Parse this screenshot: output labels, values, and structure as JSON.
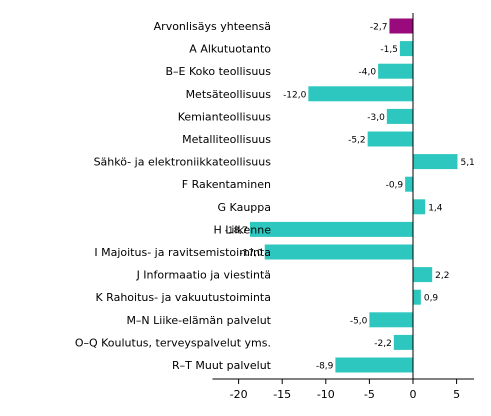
{
  "chart_data": {
    "type": "bar",
    "orientation": "horizontal",
    "title": "",
    "xlabel": "",
    "ylabel": "",
    "xlim": [
      -23,
      7
    ],
    "x_ticks": [
      -20,
      -15,
      -10,
      -5,
      0,
      5
    ],
    "x_tick_labels": [
      "-20",
      "-15",
      "-10",
      "-5",
      "0",
      "5"
    ],
    "grid": false,
    "legend": "none",
    "categories": [
      "Arvonlisäys yhteensä",
      "A Alkutuotanto",
      "B–E Koko teollisuus",
      "Metsäteollisuus",
      "Kemianteollisuus",
      "Metalliteollisuus",
      "Sähkö- ja elektroniikkateollisuus",
      "F Rakentaminen",
      "G Kauppa",
      "H Liikenne",
      "I Majoitus- ja ravitsemistoiminta",
      "J Informaatio ja viestintä",
      "K Rahoitus- ja vakuutustoiminta",
      "M–N Liike-elämän palvelut",
      "O–Q Koulutus, terveyspalvelut yms.",
      "R–T Muut palvelut"
    ],
    "values": [
      -2.7,
      -1.5,
      -4.0,
      -12.0,
      -3.0,
      -5.2,
      5.1,
      -0.9,
      1.4,
      -18.7,
      -17.0,
      2.2,
      0.9,
      -5.0,
      -2.2,
      -8.9
    ],
    "value_labels": [
      "-2,7",
      "-1,5",
      "-4,0",
      "-12,0",
      "-3,0",
      "-5,2",
      "5,1",
      "-0,9",
      "1,4",
      "-18,7",
      "-17,0",
      "2,2",
      "0,9",
      "-5,0",
      "-2,2",
      "-8,9"
    ],
    "colors": {
      "highlight": "#990a7d",
      "default": "#2ec7bf",
      "axis": "#000000"
    },
    "highlight_index": 0
  }
}
